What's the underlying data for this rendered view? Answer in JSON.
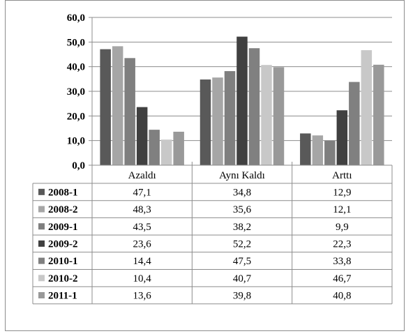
{
  "chart_data": {
    "type": "bar",
    "categories": [
      "Azaldı",
      "Aynı Kaldı",
      "Arttı"
    ],
    "series": [
      {
        "name": "2008-1",
        "values": [
          47.1,
          34.8,
          12.9
        ],
        "labels": [
          "47,1",
          "34,8",
          "12,9"
        ],
        "color": "#595959"
      },
      {
        "name": "2008-2",
        "values": [
          48.3,
          35.6,
          12.1
        ],
        "labels": [
          "48,3",
          "35,6",
          "12,1"
        ],
        "color": "#a6a6a6"
      },
      {
        "name": "2009-1",
        "values": [
          43.5,
          38.2,
          9.9
        ],
        "labels": [
          "43,5",
          "38,2",
          "9,9"
        ],
        "color": "#7f7f7f"
      },
      {
        "name": "2009-2",
        "values": [
          23.6,
          52.2,
          22.3
        ],
        "labels": [
          "23,6",
          "52,2",
          "22,3"
        ],
        "color": "#404040"
      },
      {
        "name": "2010-1",
        "values": [
          14.4,
          47.5,
          33.8
        ],
        "labels": [
          "14,4",
          "47,5",
          "33,8"
        ],
        "color": "#808080"
      },
      {
        "name": "2010-2",
        "values": [
          10.4,
          40.7,
          46.7
        ],
        "labels": [
          "10,4",
          "40,7",
          "46,7"
        ],
        "color": "#c8c8c8"
      },
      {
        "name": "2011-1",
        "values": [
          13.6,
          39.8,
          40.8
        ],
        "labels": [
          "13,6",
          "39,8",
          "40,8"
        ],
        "color": "#999999"
      }
    ],
    "yticks": [
      "0,0",
      "10,0",
      "20,0",
      "30,0",
      "40,0",
      "50,0",
      "60,0"
    ],
    "ylim": [
      0,
      60
    ],
    "grid": true,
    "legend": "data-table"
  }
}
